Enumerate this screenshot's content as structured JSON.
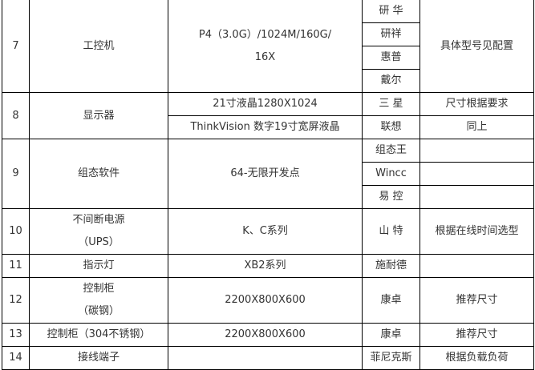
{
  "rows": [
    {
      "no": "7",
      "name": "工控机",
      "spec_lines": [
        "P4（3.0G）/1024M/160G/",
        "16X"
      ],
      "brands": [
        "研 华",
        "研祥",
        "惠普",
        "戴尔"
      ],
      "note": "具体型号见配置"
    },
    {
      "no": "8",
      "name": "显示器",
      "sub": [
        {
          "spec": "21寸液晶1280X1024",
          "brand": "三 星",
          "note": "尺寸根据要求"
        },
        {
          "spec": "ThinkVision 数字19寸宽屏液晶",
          "brand": "联想",
          "note": "同上"
        }
      ]
    },
    {
      "no": "9",
      "name": "组态软件",
      "spec": "64-无限开发点",
      "brands": [
        "组态王",
        "Wincc",
        "易 控"
      ],
      "notes": [
        "",
        "",
        ""
      ]
    },
    {
      "no": "10",
      "name_lines": [
        "不间断电源",
        "（UPS）"
      ],
      "spec": "K、C系列",
      "brand": "山 特",
      "note": "根据在线时间选型"
    },
    {
      "no": "11",
      "name": "指示灯",
      "spec": "XB2系列",
      "brand": "施耐德",
      "note": ""
    },
    {
      "no": "12",
      "name_lines": [
        "控制柜",
        "（碳钢）"
      ],
      "spec": "2200X800X600",
      "brand": "康卓",
      "note": "推荐尺寸"
    },
    {
      "no": "13",
      "name": "控制柜（304不锈钢）",
      "spec": "2200X800X600",
      "brand": "康卓",
      "note": "推荐尺寸"
    },
    {
      "no": "14",
      "name": "接线端子",
      "spec": "",
      "brand": "菲尼克斯",
      "note": "根据负载负荷"
    }
  ]
}
